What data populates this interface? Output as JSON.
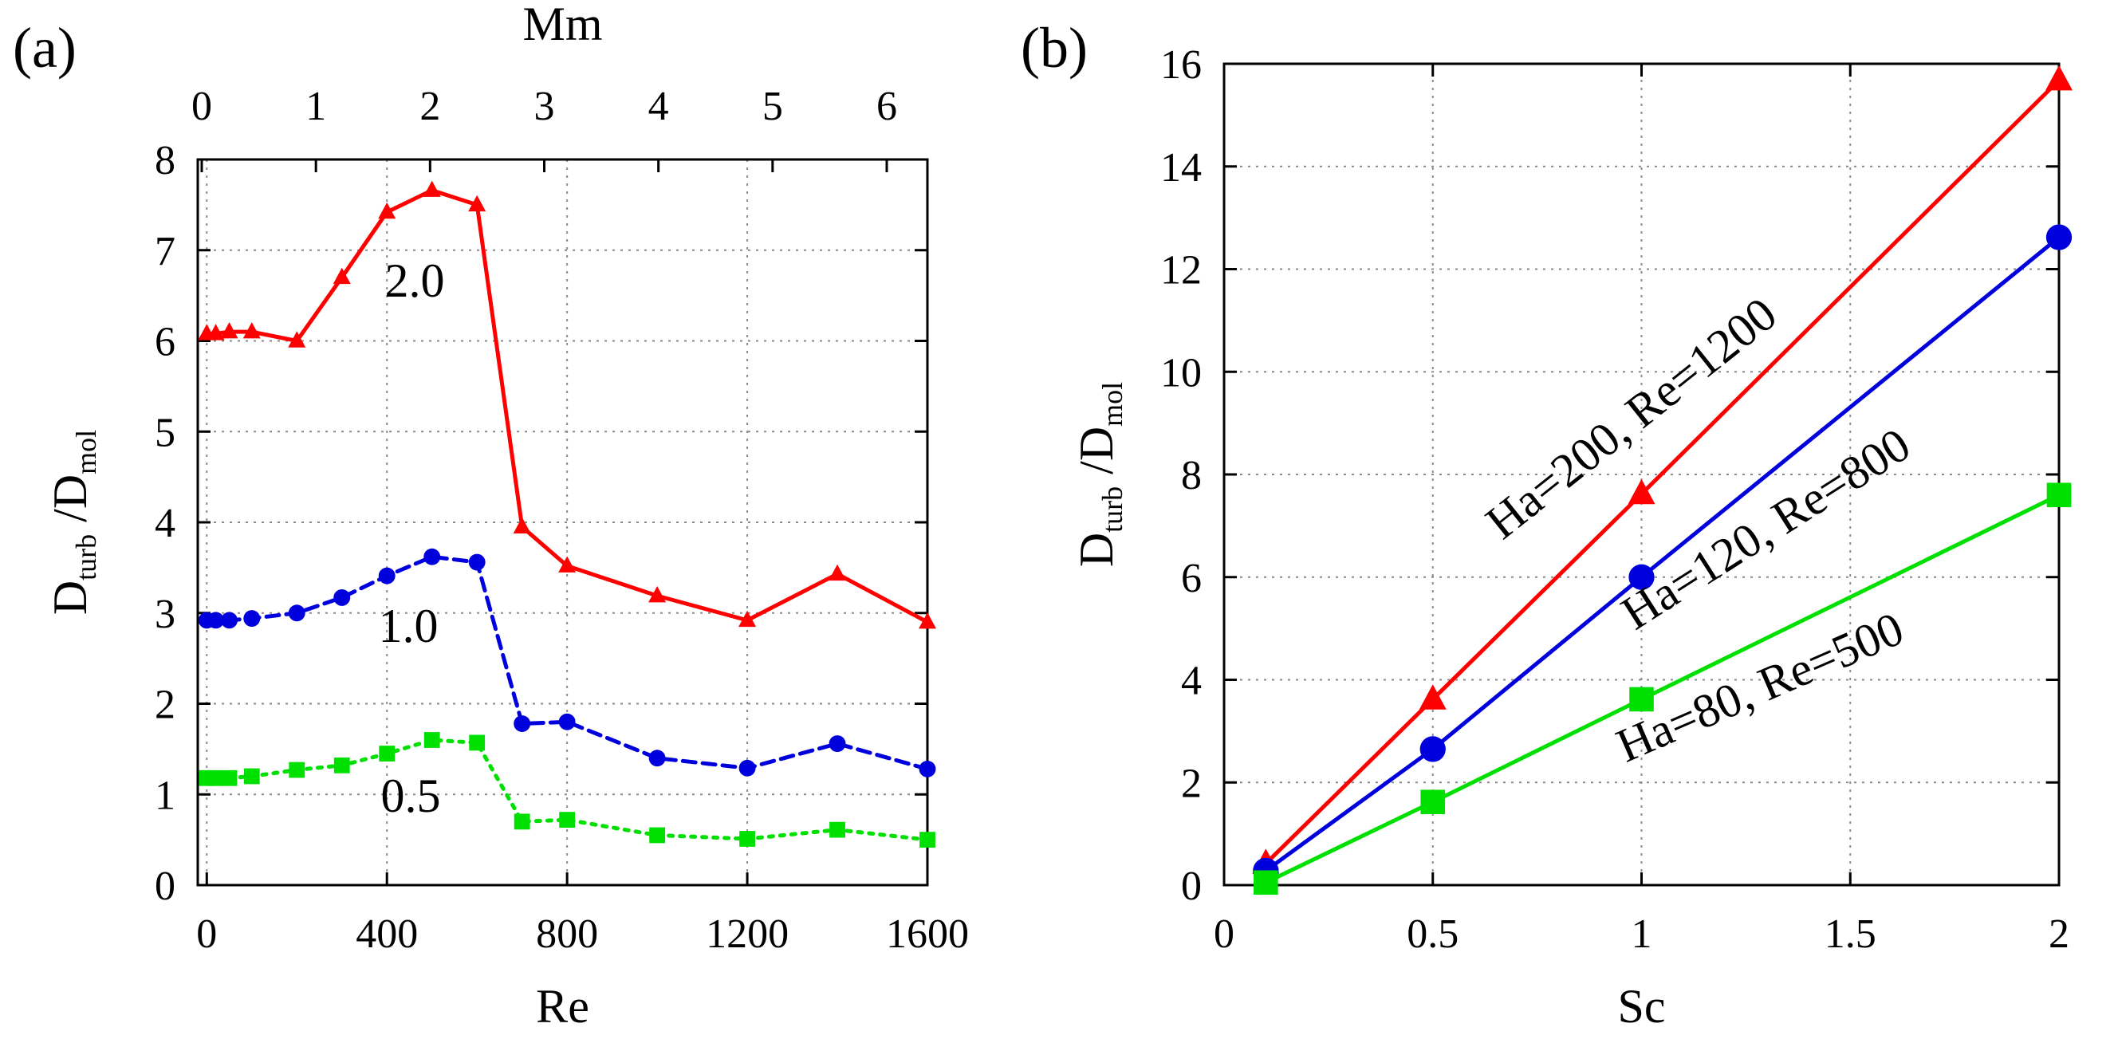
{
  "chart_data": [
    {
      "panel_label": "(a)",
      "type": "line",
      "xlabel": "Re",
      "ylabel_main": "D",
      "ylabel_sub1": "turb",
      "ylabel_mid": " /D",
      "ylabel_sub2": "mol",
      "top_xlabel": "Mm",
      "xlim": [
        -20,
        1600
      ],
      "ylim": [
        0,
        8
      ],
      "xticks": [
        0,
        400,
        800,
        1200,
        1600
      ],
      "yticks": [
        0,
        1,
        2,
        3,
        4,
        5,
        6,
        7,
        8
      ],
      "top_ticks": [
        0,
        1,
        2,
        3,
        4,
        5,
        6
      ],
      "grid": true,
      "x": [
        0,
        20,
        50,
        100,
        200,
        300,
        400,
        500,
        600,
        700,
        800,
        1000,
        1200,
        1400,
        1600
      ],
      "series": [
        {
          "name": "2.0",
          "color": "#ff0000",
          "marker": "triangle",
          "dash": "solid",
          "values": [
            6.08,
            6.08,
            6.1,
            6.1,
            6.0,
            6.7,
            7.42,
            7.66,
            7.5,
            3.95,
            3.52,
            3.19,
            2.92,
            3.43,
            2.9
          ]
        },
        {
          "name": "1.0",
          "color": "#0000dd",
          "marker": "circle",
          "dash": "dashed",
          "values": [
            2.92,
            2.92,
            2.92,
            2.94,
            3.0,
            3.17,
            3.41,
            3.62,
            3.56,
            1.78,
            1.8,
            1.4,
            1.29,
            1.56,
            1.28
          ]
        },
        {
          "name": "0.5",
          "color": "#00e000",
          "marker": "square",
          "dash": "dotted",
          "values": [
            1.18,
            1.18,
            1.18,
            1.2,
            1.27,
            1.32,
            1.45,
            1.6,
            1.57,
            0.7,
            0.72,
            0.55,
            0.51,
            0.61,
            0.5
          ]
        }
      ]
    },
    {
      "panel_label": "(b)",
      "type": "line",
      "xlabel": "Sc",
      "ylabel_main": "D",
      "ylabel_sub1": "turb",
      "ylabel_mid": " /D",
      "ylabel_sub2": "mol",
      "xlim": [
        0,
        2
      ],
      "ylim": [
        0,
        16
      ],
      "xticks": [
        0,
        0.5,
        1,
        1.5,
        2
      ],
      "yticks": [
        0,
        2,
        4,
        6,
        8,
        10,
        12,
        14,
        16
      ],
      "grid": true,
      "x": [
        0.1,
        0.5,
        1,
        2
      ],
      "series": [
        {
          "name": "Ha=200, Re=1200",
          "color": "#ff0000",
          "marker": "triangle",
          "dash": "solid",
          "values": [
            0.42,
            3.62,
            7.62,
            15.68
          ]
        },
        {
          "name": "Ha=120, Re=800",
          "color": "#0000dd",
          "marker": "circle",
          "dash": "solid",
          "values": [
            0.28,
            2.65,
            6.0,
            12.62
          ]
        },
        {
          "name": "Ha=80, Re=500",
          "color": "#00e000",
          "marker": "square",
          "dash": "solid",
          "values": [
            0.05,
            1.62,
            3.62,
            7.6
          ]
        }
      ]
    }
  ]
}
